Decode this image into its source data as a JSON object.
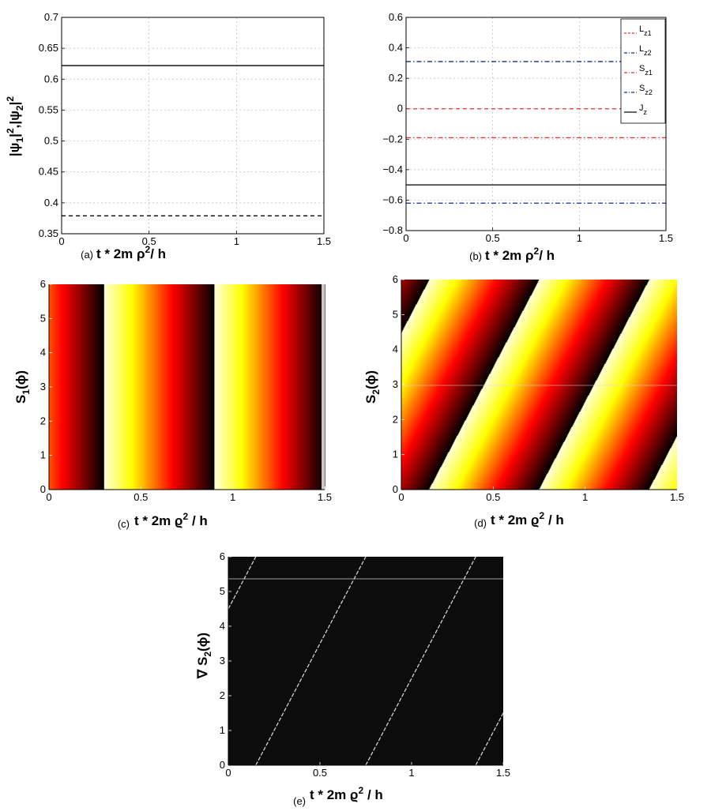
{
  "chart_data": [
    {
      "panel": "a",
      "type": "line",
      "panel_label": "(a)",
      "xlabel": "t * 2m ρ²/ h",
      "ylabel": "|ψ1|²,|ψ2|²",
      "xlim": [
        0,
        1.5
      ],
      "ylim": [
        0.35,
        0.7
      ],
      "xticks": [
        "0",
        "0.5",
        "1",
        "1.5"
      ],
      "yticks": [
        "0.35",
        "0.4",
        "0.45",
        "0.5",
        "0.55",
        "0.6",
        "0.65",
        "0.7"
      ],
      "grid": true,
      "series": [
        {
          "style": "solid",
          "color": "#000000",
          "x": [
            0,
            1.5
          ],
          "y": [
            0.622,
            0.622
          ]
        },
        {
          "style": "dashed",
          "color": "#000000",
          "x": [
            0,
            1.5
          ],
          "y": [
            0.379,
            0.379
          ]
        }
      ]
    },
    {
      "panel": "b",
      "type": "line",
      "panel_label": "(b)",
      "xlabel": "t * 2m ρ²/ h",
      "xlim": [
        0,
        1.5
      ],
      "ylim": [
        -0.8,
        0.6
      ],
      "xticks": [
        "0",
        "0.5",
        "1",
        "1.5"
      ],
      "yticks": [
        "−0.8",
        "−0.6",
        "−0.4",
        "−0.2",
        "0",
        "0.2",
        "0.4",
        "0.6"
      ],
      "grid": true,
      "legend_position": "top-right",
      "series": [
        {
          "name": "L_z1",
          "legend": [
            "L",
            "z1"
          ],
          "style": "dashed",
          "color": "#e8332a",
          "x": [
            0,
            1.5
          ],
          "y": [
            0.0,
            0.0
          ]
        },
        {
          "name": "L_z2",
          "legend": [
            "L",
            "z2"
          ],
          "style": "dashdot",
          "color": "#1f2a8c",
          "x": [
            0,
            1.5
          ],
          "y": [
            0.31,
            0.31
          ]
        },
        {
          "name": "S_z1",
          "legend": [
            "S",
            "z1"
          ],
          "style": "dashdot",
          "color": "#e8332a",
          "x": [
            0,
            1.5
          ],
          "y": [
            -0.19,
            -0.19
          ]
        },
        {
          "name": "S_z2",
          "legend": [
            "S",
            "z2"
          ],
          "style": "dashdot",
          "color": "#1f2a8c",
          "x": [
            0,
            1.5
          ],
          "y": [
            -0.62,
            -0.62
          ]
        },
        {
          "name": "J_z",
          "legend": [
            "J",
            "z"
          ],
          "style": "solid",
          "color": "#000000",
          "x": [
            0,
            1.5
          ],
          "y": [
            -0.5,
            -0.5
          ]
        }
      ]
    },
    {
      "panel": "c",
      "type": "heatmap",
      "panel_label": "(c)",
      "xlabel": "t * 2m ϱ² / h",
      "ylabel": "S1(ϕ)",
      "xlim": [
        0,
        1.5
      ],
      "ylim": [
        0,
        6.28
      ],
      "xticks": [
        "0",
        "0.5",
        "1",
        "1.5"
      ],
      "yticks": [
        "0",
        "1",
        "2",
        "3",
        "4",
        "5",
        "6"
      ],
      "colormap": "hot",
      "phase_slope_per_t": 0,
      "wrap_times": [
        0.3,
        0.9,
        1.5
      ]
    },
    {
      "panel": "d",
      "type": "heatmap",
      "panel_label": "(d)",
      "xlabel": "t * 2m ϱ² / h",
      "ylabel": "S2(ϕ)",
      "xlim": [
        0,
        1.5
      ],
      "ylim": [
        0,
        6.28
      ],
      "xticks": [
        "0",
        "0.5",
        "1",
        "1.5"
      ],
      "yticks": [
        "0",
        "1",
        "2",
        "3",
        "4",
        "5",
        "6"
      ],
      "colormap": "hot",
      "wrap_lines": [
        {
          "t_at_phi0": -0.45,
          "t_at_phi2pi": 0.15
        },
        {
          "t_at_phi0": 0.15,
          "t_at_phi2pi": 0.75
        },
        {
          "t_at_phi0": 0.75,
          "t_at_phi2pi": 1.35
        },
        {
          "t_at_phi0": 1.35,
          "t_at_phi2pi": 1.95
        }
      ]
    },
    {
      "panel": "e",
      "type": "heatmap",
      "panel_label": "(e)",
      "xlabel": "t * 2m ϱ² / h",
      "ylabel": "∇ S2(ϕ)",
      "xlim": [
        0,
        1.5
      ],
      "ylim": [
        0,
        6.28
      ],
      "xticks": [
        "0",
        "0.5",
        "1",
        "1.5"
      ],
      "yticks": [
        "0",
        "1",
        "2",
        "3",
        "4",
        "5",
        "6"
      ],
      "background": "#0c0c0c",
      "line_color": "#dddddd",
      "lines": [
        {
          "t_at_phi0": -0.45,
          "t_at_phi2pi": 0.15
        },
        {
          "t_at_phi0": 0.15,
          "t_at_phi2pi": 0.75
        },
        {
          "t_at_phi0": 0.75,
          "t_at_phi2pi": 1.35
        },
        {
          "t_at_phi0": 1.35,
          "t_at_phi2pi": 1.95
        }
      ]
    }
  ]
}
